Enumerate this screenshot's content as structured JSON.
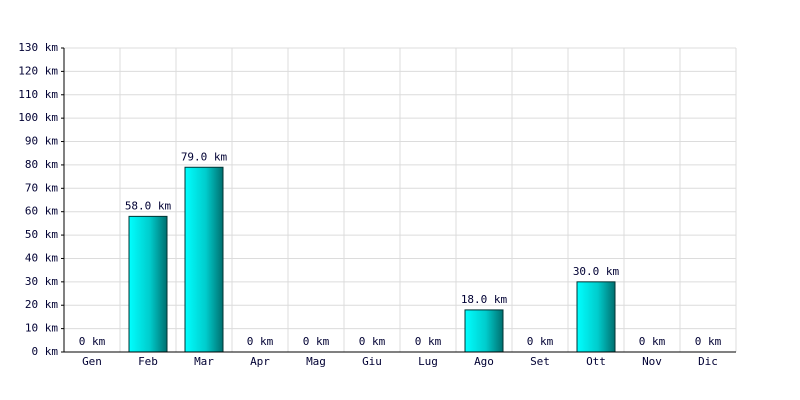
{
  "chart_data": {
    "type": "bar",
    "categories": [
      "Gen",
      "Feb",
      "Mar",
      "Apr",
      "Mag",
      "Giu",
      "Lug",
      "Ago",
      "Set",
      "Ott",
      "Nov",
      "Dic"
    ],
    "values": [
      0,
      58,
      79,
      0,
      0,
      0,
      0,
      18,
      0,
      30,
      0,
      0
    ],
    "value_labels": [
      "0 km",
      "58.0 km",
      "79.0 km",
      "0 km",
      "0 km",
      "0 km",
      "0 km",
      "18.0 km",
      "0 km",
      "30.0 km",
      "0 km",
      "0 km"
    ],
    "color": "#00cccc",
    "ylim": [
      0,
      130
    ],
    "yticks": [
      {
        "value": 0,
        "label": "0 km"
      },
      {
        "value": 10,
        "label": "10 km"
      },
      {
        "value": 20,
        "label": "20 km"
      },
      {
        "value": 30,
        "label": "30 km"
      },
      {
        "value": 40,
        "label": "40 km"
      },
      {
        "value": 50,
        "label": "50 km"
      },
      {
        "value": 60,
        "label": "60 km"
      },
      {
        "value": 70,
        "label": "70 km"
      },
      {
        "value": 80,
        "label": "80 km"
      },
      {
        "value": 90,
        "label": "90 km"
      },
      {
        "value": 100,
        "label": "100 km"
      },
      {
        "value": 110,
        "label": "110 km"
      },
      {
        "value": 120,
        "label": "120 km"
      },
      {
        "value": 130,
        "label": "130 km"
      }
    ],
    "grid": true
  }
}
